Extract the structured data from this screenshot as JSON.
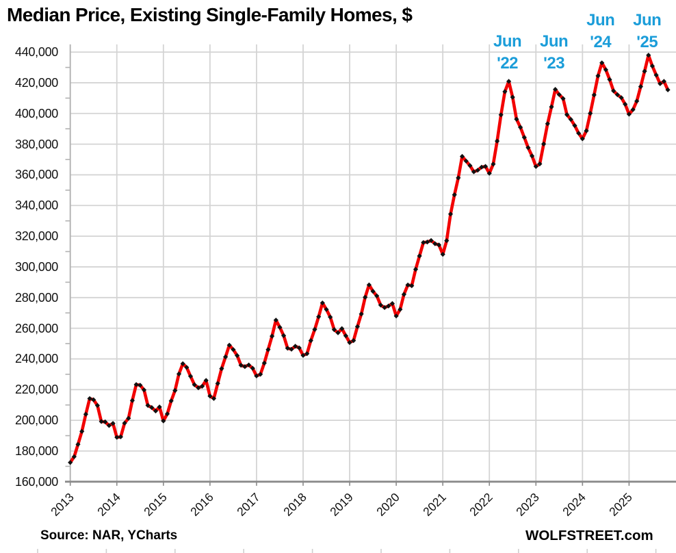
{
  "header": {
    "title": "Median Price, Existing Single-Family Homes, $"
  },
  "footer": {
    "source": "Source: NAR, YCharts",
    "brand": "WOLFSTREET.com"
  },
  "colors": {
    "line": "#f20000",
    "marker": "#111111",
    "annotation": "#1b9dd9",
    "grid": "#d4d4d4",
    "axis": "#8a8a8a",
    "left_axis": "#b2b2b2",
    "edge_tick": "#cfcfcf",
    "text": "#000000"
  },
  "chart_data": {
    "type": "line",
    "title": "Median Price, Existing Single-Family Homes, $",
    "xlabel": "",
    "ylabel": "",
    "grid": true,
    "legend_position": "none",
    "x_start_year": 2013,
    "x_start_month": 1,
    "x_tick_years": [
      2013,
      2014,
      2015,
      2016,
      2017,
      2018,
      2019,
      2020,
      2021,
      2022,
      2023,
      2024,
      2025
    ],
    "ylim": [
      160000,
      445000
    ],
    "ytick_step": 20000,
    "ytick_minor_step": 10000,
    "series": [
      {
        "name": "Median price, existing single-family homes, $",
        "frequency": "monthly",
        "first_month": "2013-01",
        "last_month": "2025-11",
        "values": [
          172500,
          176300,
          184300,
          192800,
          204000,
          214200,
          213400,
          209700,
          199200,
          199000,
          196600,
          198000,
          188900,
          189200,
          198200,
          201300,
          212900,
          223300,
          222900,
          219800,
          209700,
          208300,
          206100,
          208700,
          199600,
          204200,
          212700,
          219400,
          230200,
          236900,
          234500,
          228700,
          223200,
          221200,
          222200,
          226000,
          215800,
          214200,
          224000,
          233700,
          241300,
          249000,
          246100,
          242200,
          235900,
          235000,
          236100,
          233900,
          228900,
          230000,
          237300,
          246100,
          254900,
          265300,
          260600,
          255200,
          247000,
          246300,
          248300,
          247200,
          242300,
          243400,
          252000,
          259200,
          267500,
          276500,
          272300,
          267300,
          259100,
          257000,
          259800,
          255100,
          250700,
          252000,
          261100,
          269300,
          280200,
          288300,
          284100,
          281100,
          275100,
          273500,
          274500,
          276100,
          268000,
          272300,
          282100,
          288200,
          287700,
          298400,
          307100,
          315900,
          316200,
          317200,
          315100,
          314300,
          308200,
          317100,
          334400,
          347000,
          358000,
          372000,
          369000,
          366000,
          362000,
          363000,
          365000,
          365500,
          361000,
          367000,
          382000,
          399100,
          414200,
          420900,
          410600,
          396300,
          391000,
          384400,
          377700,
          372300,
          365400,
          367100,
          380100,
          393300,
          404300,
          415700,
          412300,
          409700,
          399200,
          396100,
          392100,
          387100,
          383500,
          388700,
          400100,
          412100,
          424500,
          433000,
          428500,
          422100,
          414700,
          412200,
          410300,
          406000,
          399500,
          402500,
          408000,
          417500,
          427500,
          438000,
          430900,
          425000,
          419400,
          420900,
          415400
        ]
      }
    ],
    "annotations": [
      {
        "line1": "Jun",
        "line2": "'22",
        "month_index": 113,
        "row": "low"
      },
      {
        "line1": "Jun",
        "line2": "'23",
        "month_index": 125,
        "row": "low"
      },
      {
        "line1": "Jun",
        "line2": "'24",
        "month_index": 137,
        "row": "high"
      },
      {
        "line1": "Jun",
        "line2": "'25",
        "month_index": 149,
        "row": "high"
      }
    ]
  }
}
